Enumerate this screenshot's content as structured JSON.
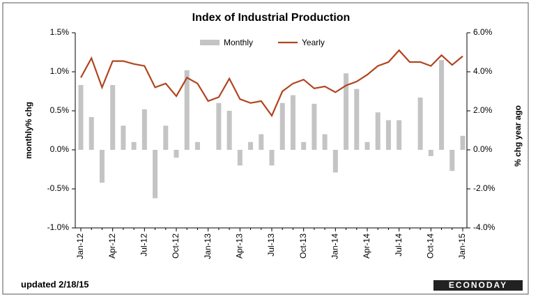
{
  "chart_data": {
    "type": "bar-line",
    "title": "Index of Industrial Production",
    "ylabel": "monthly% chg",
    "y2label": "% chg year ago",
    "footnote": "updated 2/18/15",
    "brand": "ECONODAY",
    "legend": "top",
    "categories": [
      "Jan-12",
      null,
      null,
      "Apr-12",
      null,
      null,
      "Jul-12",
      null,
      null,
      "Oct-12",
      null,
      null,
      "Jan-13",
      null,
      null,
      "Apr-13",
      null,
      null,
      "Jul-13",
      null,
      null,
      "Oct-13",
      null,
      null,
      "Jan-14",
      null,
      null,
      "Apr-14",
      null,
      null,
      "Jul-14",
      null,
      null,
      "Oct-14",
      null,
      null,
      "Jan-15"
    ],
    "series": [
      {
        "name": "Monthly",
        "type": "bar",
        "color": "#c4c4c4",
        "values": [
          0.83,
          0.42,
          -0.42,
          0.83,
          0.31,
          0.1,
          0.52,
          -0.62,
          0.31,
          -0.1,
          1.02,
          0.1,
          0,
          0.6,
          0.5,
          -0.2,
          0.1,
          0.2,
          -0.2,
          0.6,
          0.7,
          0.1,
          0.59,
          0.2,
          -0.29,
          0.98,
          0.78,
          0.1,
          0.48,
          0.38,
          0.38,
          0,
          0.67,
          -0.08,
          1.15,
          -0.27,
          0.18
        ]
      },
      {
        "name": "Yearly",
        "type": "line",
        "axis": "y2",
        "color": "#b0451f",
        "values": [
          3.7,
          4.7,
          3.2,
          4.55,
          4.55,
          4.4,
          4.3,
          3.2,
          3.4,
          2.75,
          3.7,
          3.4,
          2.5,
          2.7,
          3.65,
          2.6,
          2.4,
          2.5,
          1.75,
          3.0,
          3.4,
          3.6,
          3.15,
          3.25,
          2.95,
          3.3,
          3.5,
          3.85,
          4.3,
          4.5,
          5.1,
          4.5,
          4.5,
          4.3,
          4.85,
          4.35,
          4.8
        ]
      }
    ],
    "ylim": [
      -1.0,
      1.5
    ],
    "yticks": [
      {
        "value": -1.0,
        "label": "-1.0%"
      },
      {
        "value": -0.5,
        "label": "-0.5%"
      },
      {
        "value": 0,
        "label": "0.0%"
      },
      {
        "value": 0.5,
        "label": "0.5%"
      },
      {
        "value": 1.0,
        "label": "1.0%"
      },
      {
        "value": 1.5,
        "label": "1.5%"
      }
    ],
    "y2lim": [
      -4.0,
      6.0
    ],
    "y2ticks": [
      {
        "value": -4.0,
        "label": "-4.0%"
      },
      {
        "value": -2.0,
        "label": "-2.0%"
      },
      {
        "value": 0,
        "label": "0.0%"
      },
      {
        "value": 2.0,
        "label": "2.0%"
      },
      {
        "value": 4.0,
        "label": "4.0%"
      },
      {
        "value": 6.0,
        "label": "6.0%"
      }
    ]
  }
}
